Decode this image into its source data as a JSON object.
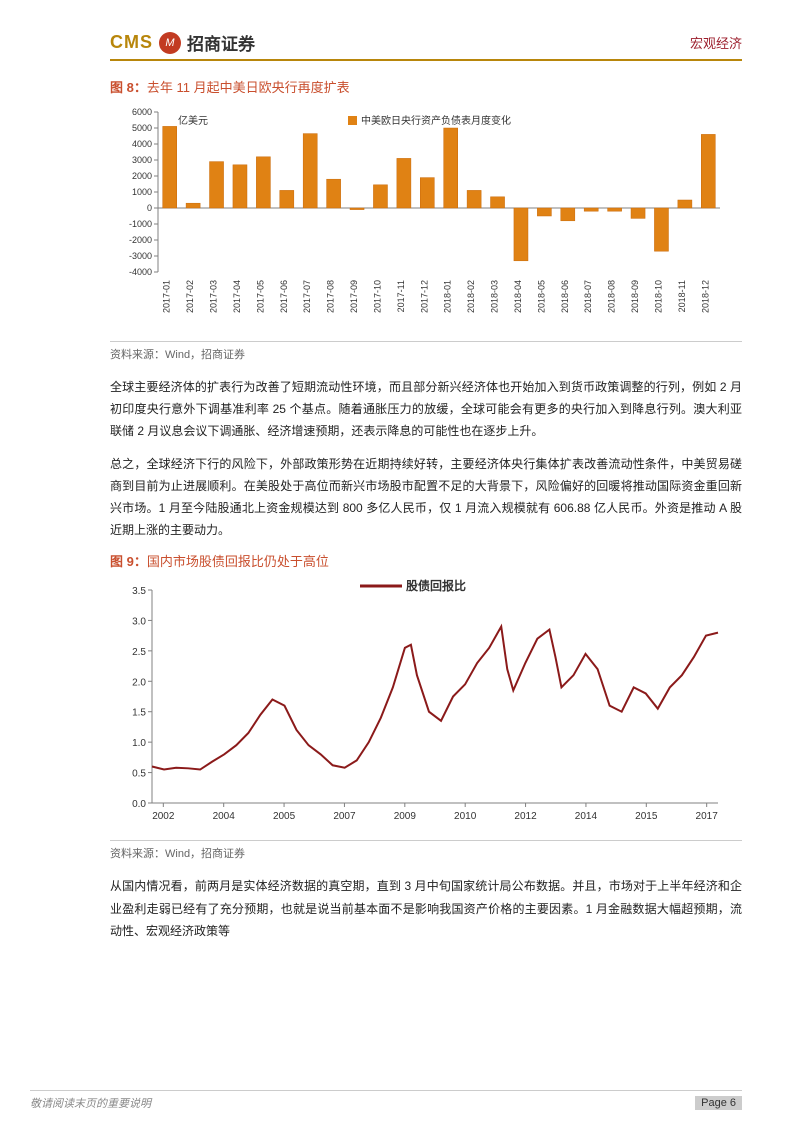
{
  "header": {
    "logo_en": "CMS",
    "logo_icon": "M",
    "logo_cn": "招商证券",
    "right": "宏观经济"
  },
  "fig8": {
    "title_prefix": "图 8：",
    "title": "去年 11 月起中美日欧央行再度扩表",
    "ylabel": "亿美元",
    "legend": "中美欧日央行资产负债表月度变化",
    "source": "资料来源：Wind，招商证券",
    "type": "bar",
    "bar_color": "#e08214",
    "bar_border": "#c96a0a",
    "ylim": [
      -4000,
      6000
    ],
    "ytick_step": 1000,
    "background_color": "#ffffff",
    "axis_color": "#808080",
    "tick_label_color": "#333333",
    "tick_fontsize": 9,
    "legend_fontsize": 10,
    "bar_width": 0.6,
    "categories": [
      "2017-01",
      "2017-02",
      "2017-03",
      "2017-04",
      "2017-05",
      "2017-06",
      "2017-07",
      "2017-08",
      "2017-09",
      "2017-10",
      "2017-11",
      "2017-12",
      "2018-01",
      "2018-02",
      "2018-03",
      "2018-04",
      "2018-05",
      "2018-06",
      "2018-07",
      "2018-08",
      "2018-09",
      "2018-10",
      "2018-11",
      "2018-12"
    ],
    "values": [
      5100,
      300,
      2900,
      2700,
      3200,
      1100,
      4650,
      1800,
      -100,
      1450,
      3100,
      1900,
      5000,
      1100,
      700,
      -3300,
      -500,
      -800,
      -200,
      -200,
      -650,
      -2700,
      500,
      4600
    ]
  },
  "para1": "全球主要经济体的扩表行为改善了短期流动性环境，而且部分新兴经济体也开始加入到货币政策调整的行列，例如 2 月初印度央行意外下调基准利率 25 个基点。随着通胀压力的放缓，全球可能会有更多的央行加入到降息行列。澳大利亚联储 2 月议息会议下调通胀、经济增速预期，还表示降息的可能性也在逐步上升。",
  "para2": "总之，全球经济下行的风险下，外部政策形势在近期持续好转，主要经济体央行集体扩表改善流动性条件，中美贸易磋商到目前为止进展顺利。在美股处于高位而新兴市场股市配置不足的大背景下，风险偏好的回暖将推动国际资金重回新兴市场。1 月至今陆股通北上资金规模达到 800 多亿人民币，仅 1 月流入规模就有 606.88 亿人民币。外资是推动 A 股近期上涨的主要动力。",
  "fig9": {
    "title_prefix": "图 9：",
    "title": "国内市场股债回报比仍处于高位",
    "legend": "股债回报比",
    "source": "资料来源：Wind，招商证券",
    "type": "line",
    "line_color": "#8b1a1a",
    "line_width": 2,
    "ylim": [
      0.0,
      3.5
    ],
    "ytick_step": 0.5,
    "background_color": "#ffffff",
    "axis_color": "#808080",
    "tick_label_color": "#333333",
    "tick_fontsize": 10,
    "legend_fontsize": 11,
    "x_categories": [
      "2002",
      "2004",
      "2005",
      "2007",
      "2009",
      "2010",
      "2012",
      "2014",
      "2015",
      "2017"
    ],
    "data": [
      [
        0,
        0.6
      ],
      [
        4,
        0.55
      ],
      [
        8,
        0.58
      ],
      [
        12,
        0.57
      ],
      [
        16,
        0.55
      ],
      [
        20,
        0.68
      ],
      [
        24,
        0.8
      ],
      [
        28,
        0.95
      ],
      [
        32,
        1.15
      ],
      [
        36,
        1.45
      ],
      [
        40,
        1.7
      ],
      [
        44,
        1.6
      ],
      [
        48,
        1.2
      ],
      [
        52,
        0.95
      ],
      [
        56,
        0.8
      ],
      [
        60,
        0.62
      ],
      [
        64,
        0.58
      ],
      [
        68,
        0.7
      ],
      [
        72,
        1.0
      ],
      [
        76,
        1.4
      ],
      [
        80,
        1.9
      ],
      [
        84,
        2.55
      ],
      [
        86,
        2.6
      ],
      [
        88,
        2.1
      ],
      [
        92,
        1.5
      ],
      [
        96,
        1.35
      ],
      [
        100,
        1.75
      ],
      [
        104,
        1.95
      ],
      [
        108,
        2.3
      ],
      [
        112,
        2.55
      ],
      [
        116,
        2.9
      ],
      [
        118,
        2.2
      ],
      [
        120,
        1.85
      ],
      [
        124,
        2.3
      ],
      [
        128,
        2.7
      ],
      [
        132,
        2.85
      ],
      [
        134,
        2.4
      ],
      [
        136,
        1.9
      ],
      [
        140,
        2.1
      ],
      [
        144,
        2.45
      ],
      [
        148,
        2.2
      ],
      [
        152,
        1.6
      ],
      [
        156,
        1.5
      ],
      [
        160,
        1.9
      ],
      [
        164,
        1.8
      ],
      [
        168,
        1.55
      ],
      [
        172,
        1.9
      ],
      [
        176,
        2.1
      ],
      [
        180,
        2.4
      ],
      [
        184,
        2.75
      ],
      [
        188,
        2.8
      ]
    ]
  },
  "para3": "从国内情况看，前两月是实体经济数据的真空期，直到 3 月中旬国家统计局公布数据。并且，市场对于上半年经济和企业盈利走弱已经有了充分预期，也就是说当前基本面不是影响我国资产价格的主要因素。1 月金融数据大幅超预期，流动性、宏观经济政策等",
  "footer": {
    "left": "敬请阅读末页的重要说明",
    "right": "Page 6"
  }
}
